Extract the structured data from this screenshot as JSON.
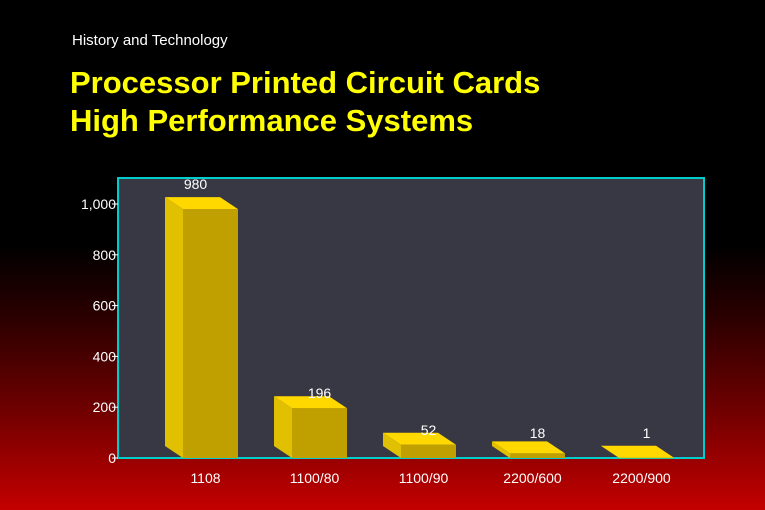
{
  "header": {
    "subtitle": "History and Technology",
    "title_line1": "Processor Printed Circuit Cards",
    "title_line2": "High Performance Systems"
  },
  "colors": {
    "plot_background": "#383844",
    "plot_border": "#00cccc",
    "bar_front": "#c0a000",
    "bar_side": "#e0c000",
    "bar_top": "#ffd800",
    "text": "#ffffff",
    "title": "#ffff00"
  },
  "chart_data": {
    "type": "bar",
    "title": "",
    "xlabel": "",
    "ylabel": "",
    "categories": [
      "1108",
      "1100/80",
      "1100/90",
      "2200/600",
      "2200/900"
    ],
    "values": [
      980,
      196,
      52,
      18,
      1
    ],
    "data_labels": [
      "980",
      "196",
      "52",
      "18",
      "1"
    ],
    "ylim": [
      0,
      1000
    ],
    "yticks": [
      0,
      200,
      400,
      600,
      800,
      1000
    ],
    "ytick_labels": [
      "0",
      "200",
      "400",
      "600",
      "800",
      "1,000"
    ],
    "grid": false,
    "legend": "none",
    "style": "3d"
  }
}
